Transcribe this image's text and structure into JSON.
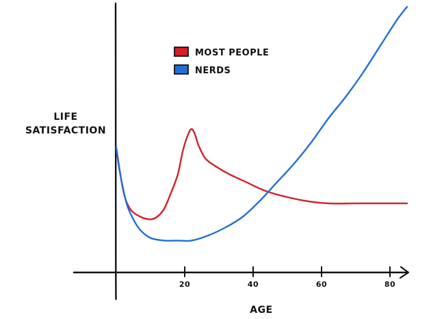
{
  "chart_data": {
    "type": "line",
    "xlabel": "AGE",
    "ylabel_lines": [
      "LIFE",
      "SATISFACTION"
    ],
    "xlim": [
      0,
      85
    ],
    "ylim": [
      0,
      100
    ],
    "x_ticks": [
      20,
      40,
      60,
      80
    ],
    "grid": false,
    "legend_position": "top-center",
    "series": [
      {
        "name": "MOST PEOPLE",
        "color": "#d61f26",
        "points": [
          [
            0,
            47
          ],
          [
            2,
            31
          ],
          [
            4,
            24
          ],
          [
            7,
            21
          ],
          [
            10,
            20
          ],
          [
            12,
            21
          ],
          [
            14,
            24
          ],
          [
            16,
            30
          ],
          [
            18,
            37
          ],
          [
            19.5,
            46
          ],
          [
            21,
            52
          ],
          [
            22,
            54
          ],
          [
            23,
            52
          ],
          [
            24,
            48
          ],
          [
            26,
            43
          ],
          [
            29,
            40
          ],
          [
            33,
            37
          ],
          [
            38,
            34
          ],
          [
            43,
            31
          ],
          [
            48,
            29
          ],
          [
            55,
            27
          ],
          [
            62,
            26
          ],
          [
            70,
            26
          ],
          [
            78,
            26
          ],
          [
            85,
            26
          ]
        ]
      },
      {
        "name": "NERDS",
        "color": "#1f6fd6",
        "points": [
          [
            0,
            47
          ],
          [
            1,
            38
          ],
          [
            3,
            26
          ],
          [
            5,
            20
          ],
          [
            7,
            16
          ],
          [
            10,
            13
          ],
          [
            14,
            12
          ],
          [
            18,
            12
          ],
          [
            22,
            12
          ],
          [
            27,
            14
          ],
          [
            32,
            17
          ],
          [
            37,
            21
          ],
          [
            42,
            27
          ],
          [
            47,
            34
          ],
          [
            52,
            41
          ],
          [
            57,
            49
          ],
          [
            62,
            58
          ],
          [
            67,
            66
          ],
          [
            72,
            75
          ],
          [
            77,
            85
          ],
          [
            82,
            95
          ],
          [
            85,
            100
          ]
        ]
      }
    ]
  }
}
